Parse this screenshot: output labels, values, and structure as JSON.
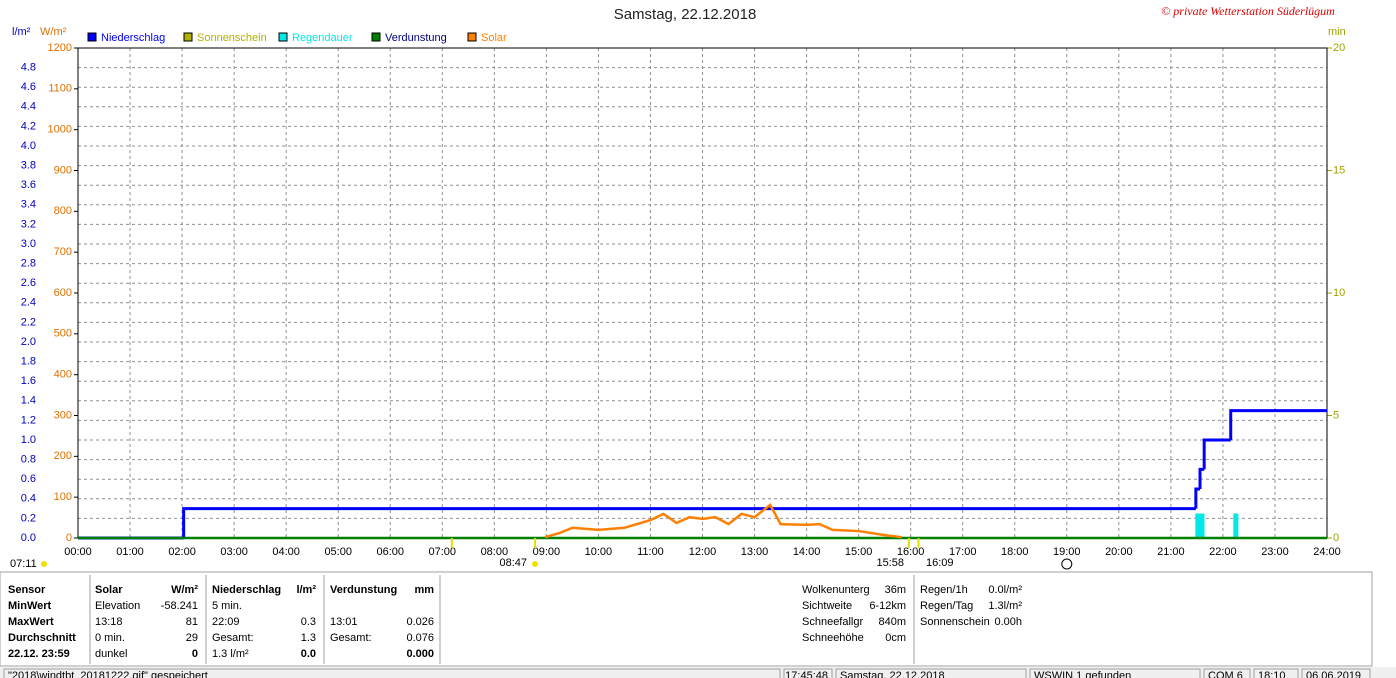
{
  "chart_data": {
    "type": "line",
    "title": "Samstag, 22.12.2018",
    "credit": "© private Wetterstation Süderlügum",
    "y_label": "l/m²",
    "y_solar_label": "W/m²",
    "y2_label": "min",
    "xlim": [
      0,
      24
    ],
    "xticks": [
      {
        "value": 0,
        "label": "00:00"
      },
      {
        "value": 1,
        "label": "01:00"
      },
      {
        "value": 2,
        "label": "02:00"
      },
      {
        "value": 3,
        "label": "03:00"
      },
      {
        "value": 4,
        "label": "04:00"
      },
      {
        "value": 5,
        "label": "05:00"
      },
      {
        "value": 6,
        "label": "06:00"
      },
      {
        "value": 7,
        "label": "07:00"
      },
      {
        "value": 8,
        "label": "08:00"
      },
      {
        "value": 9,
        "label": "09:00"
      },
      {
        "value": 10,
        "label": "10:00"
      },
      {
        "value": 11,
        "label": "11:00"
      },
      {
        "value": 12,
        "label": "12:00"
      },
      {
        "value": 13,
        "label": "13:00"
      },
      {
        "value": 14,
        "label": "14:00"
      },
      {
        "value": 15,
        "label": "15:00"
      },
      {
        "value": 16,
        "label": "16:00"
      },
      {
        "value": 17,
        "label": "17:00"
      },
      {
        "value": 18,
        "label": "18:00"
      },
      {
        "value": 19,
        "label": "19:00"
      },
      {
        "value": 20,
        "label": "20:00"
      },
      {
        "value": 21,
        "label": "21:00"
      },
      {
        "value": 22,
        "label": "22:00"
      },
      {
        "value": 23,
        "label": "23:00"
      },
      {
        "value": 24,
        "label": "24:00"
      }
    ],
    "ylim": [
      0,
      5.0
    ],
    "yticks": [
      {
        "value": 0,
        "label": "0.0"
      },
      0.2,
      0.4,
      0.6,
      0.8,
      {
        "value": 1,
        "label": "1.0"
      },
      1.2,
      1.4,
      1.6,
      1.8,
      {
        "value": 2,
        "label": "2.0"
      },
      2.2,
      2.4,
      2.6,
      2.8,
      {
        "value": 3,
        "label": "3.0"
      },
      3.2,
      3.4,
      3.6,
      3.8,
      {
        "value": 4,
        "label": "4.0"
      },
      4.2,
      4.4,
      4.6,
      4.8
    ],
    "y_solar_lim": [
      0,
      1200
    ],
    "y_solar_ticks": [
      0,
      100,
      200,
      300,
      400,
      500,
      600,
      700,
      800,
      900,
      1000,
      1100,
      1200
    ],
    "y2lim": [
      0,
      20
    ],
    "y2ticks": [
      0,
      5,
      10,
      15,
      20
    ],
    "grid": true,
    "series": [
      {
        "name": "Niederschlag",
        "color": "#0000ff",
        "type": "step",
        "axis": "y",
        "x": [
          0,
          2.03,
          21.48,
          21.56,
          21.64,
          22.15
        ],
        "values": [
          0,
          0.3,
          0.5,
          0.7,
          1.0,
          1.3
        ]
      },
      {
        "name": "Sonnenschein",
        "color": "#b0b000",
        "type": "bar",
        "axis": "y2",
        "x": [],
        "values": []
      },
      {
        "name": "Regendauer",
        "color": "#00e8e8",
        "type": "bar",
        "axis": "y2",
        "x": [
          21.47,
          21.55,
          22.2
        ],
        "values": [
          1,
          1,
          1
        ]
      },
      {
        "name": "Verdunstung",
        "color": "#008000",
        "type": "line",
        "axis": "y",
        "x": [
          0,
          24
        ],
        "values": [
          0,
          0
        ]
      },
      {
        "name": "Solar",
        "color": "#ff8000",
        "type": "line",
        "axis": "solar",
        "x": [
          8.97,
          9.25,
          9.5,
          10.0,
          10.5,
          11.0,
          11.25,
          11.5,
          11.75,
          12.0,
          12.25,
          12.5,
          12.75,
          13.0,
          13.3,
          13.5,
          14.0,
          14.25,
          14.5,
          15.0,
          15.5,
          15.83
        ],
        "values": [
          2,
          12,
          25,
          20,
          25,
          44,
          59,
          37,
          51,
          47,
          51,
          34,
          59,
          51,
          81,
          34,
          32,
          34,
          20,
          17,
          7,
          2
        ]
      }
    ],
    "sun_events": [
      {
        "value": 7.183,
        "label": "07:11"
      },
      {
        "value": 8.783,
        "label": "08:47"
      },
      {
        "value": 15.967,
        "label": "15:58"
      },
      {
        "value": 16.15,
        "label": "16:09"
      }
    ]
  },
  "stats": {
    "rows": [
      [
        "Sensor",
        "Solar",
        "W/m²",
        "Niederschlag",
        "l/m²",
        "Verdunstung",
        "mm"
      ],
      [
        "MinWert",
        "Elevation",
        "-58.241",
        "5 min.",
        null,
        null,
        null
      ],
      [
        "MaxWert",
        "13:18",
        "81",
        "22:09",
        "0.3",
        "13:01",
        "0.026"
      ],
      [
        "Durchschnitt",
        "0 min.",
        "29",
        "Gesamt:",
        "1.3",
        "Gesamt:",
        "0.076"
      ],
      [
        "22.12. 23:59",
        "dunkel",
        "0",
        "1.3 l/m²",
        "0.0",
        null,
        "0.000"
      ]
    ],
    "weather": [
      [
        "Wolkenunterg",
        "36m"
      ],
      [
        "Sichtweite",
        "6-12km"
      ],
      [
        "Schneefallgr",
        "840m"
      ],
      [
        "Schneehöhe",
        "0cm"
      ]
    ],
    "rain": [
      [
        "Regen/1h",
        "0.0l/m²"
      ],
      [
        "Regen/Tag",
        "1.3l/m²"
      ],
      [
        "Sonnenschein",
        "0.00h"
      ]
    ]
  },
  "status_bar": [
    "\"2018\\windtbt_20181222.gif\" gespeichert",
    "17:45:48",
    "Samstag, 22.12.2018",
    "WSWIN 1 gefunden",
    "COM 6",
    "18:10",
    "06.06.2019"
  ]
}
